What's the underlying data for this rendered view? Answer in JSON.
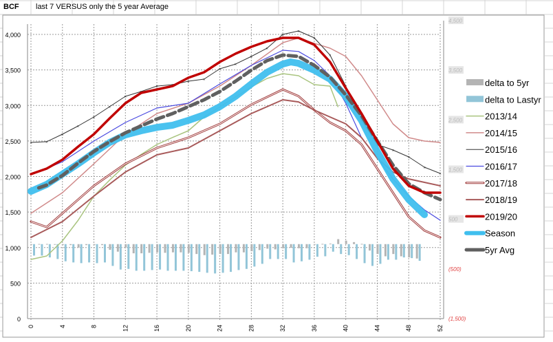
{
  "sheet": {
    "cell_a1": "BCF",
    "cell_b1": "last 7 VERSUS only the 5 year Average"
  },
  "chart_data": {
    "type": "line",
    "title": "",
    "xlabel": "",
    "ylabel": "",
    "xlim": [
      0,
      52
    ],
    "x_ticks": [
      0,
      4,
      8,
      12,
      16,
      20,
      24,
      28,
      32,
      36,
      40,
      44,
      48,
      52
    ],
    "ylim": [
      0,
      4000
    ],
    "y_ticks": [
      0,
      500,
      1000,
      1500,
      2000,
      2500,
      3000,
      3500,
      4000
    ],
    "y_tick_labels": [
      "0",
      "500",
      "1,000",
      "1,500",
      "2,000",
      "2,500",
      "3,000",
      "3,500",
      "4,000"
    ],
    "y2lim": [
      -1500,
      4500
    ],
    "y2_tick_labels": [
      "4,500",
      "3,500",
      "2,500",
      "1,500",
      "500",
      "(500)",
      "(1,500)"
    ],
    "y2_ticks": [
      4500,
      3500,
      2500,
      1500,
      500,
      -500,
      -1500
    ],
    "grid": true,
    "legend_placement": "right",
    "bar_series": [
      {
        "name": "delta to 5yr",
        "color": "#b4b4b4",
        "axis": "secondary",
        "values": [
          -5,
          3,
          3,
          -5,
          -20,
          -20,
          -70,
          -20,
          -20,
          -20,
          -115,
          -152,
          -60,
          -185,
          -185,
          -175,
          -166,
          -175,
          -166,
          -166,
          -175,
          -199,
          -222,
          -212,
          -199,
          -199,
          -166,
          -166,
          -143,
          -120,
          -92,
          -106,
          -83,
          -74,
          -83,
          -83,
          -10,
          5,
          10,
          100,
          70,
          40,
          5,
          -130,
          -199,
          -245,
          -199,
          -245,
          -268,
          -290
        ]
      },
      {
        "name": "delta to Lastyr",
        "color": "#92c5d8",
        "axis": "secondary",
        "values": [
          -231,
          -231,
          -268,
          -300,
          -346,
          -369,
          -383,
          -369,
          -383,
          -369,
          -439,
          -512,
          -499,
          -536,
          -536,
          -522,
          -512,
          -536,
          -536,
          -536,
          -545,
          -559,
          -577,
          -591,
          -577,
          -559,
          -522,
          -499,
          -452,
          -397,
          -300,
          -300,
          -300,
          -369,
          -346,
          -314,
          -254,
          -245,
          -152,
          -199,
          -222,
          -300,
          -383,
          -439,
          -397,
          -314,
          -314,
          -268,
          -282,
          -337
        ]
      }
    ],
    "series": [
      {
        "name": "2013/14",
        "color": "#a9c47f",
        "x": [
          0,
          2,
          4,
          6,
          8,
          10,
          12,
          14,
          16,
          18,
          20,
          22,
          24,
          26,
          28,
          30,
          32,
          34,
          36,
          38,
          39
        ],
        "values": [
          833,
          881,
          1094,
          1385,
          1724,
          1950,
          2160,
          2310,
          2450,
          2550,
          2644,
          2838,
          2980,
          3120,
          3260,
          3380,
          3448,
          3419,
          3293,
          3273,
          2983
        ]
      },
      {
        "name": "2014/15",
        "color": "#d08a8a",
        "x": [
          0,
          4,
          8,
          12,
          16,
          20,
          24,
          28,
          32,
          34,
          36,
          38,
          40,
          42,
          44,
          46,
          48,
          50,
          52
        ],
        "values": [
          1482,
          1772,
          2179,
          2596,
          2886,
          3031,
          3273,
          3564,
          3884,
          3950,
          3874,
          3806,
          3690,
          3419,
          3080,
          2741,
          2547,
          2499,
          2479
        ]
      },
      {
        "name": "2015/16",
        "color": "#333333",
        "x": [
          0,
          2,
          4,
          6,
          8,
          10,
          12,
          14,
          16,
          18,
          20,
          22,
          24,
          26,
          28,
          30,
          32,
          34,
          36,
          38,
          40,
          42,
          44,
          46,
          48,
          50,
          52
        ],
        "values": [
          2479,
          2490,
          2596,
          2712,
          2838,
          2983,
          3128,
          3196,
          3273,
          3293,
          3341,
          3370,
          3516,
          3583,
          3690,
          3806,
          4000,
          4048,
          3952,
          3709,
          3273,
          2789,
          2450,
          2373,
          2276,
          2131,
          2044
        ]
      },
      {
        "name": "2016/17",
        "color": "#4a4ae0",
        "x": [
          1,
          4,
          8,
          12,
          16,
          20,
          24,
          28,
          32,
          34,
          36,
          38,
          40,
          42,
          44,
          46,
          48,
          50,
          52
        ],
        "values": [
          2063,
          2208,
          2499,
          2760,
          2964,
          3031,
          3303,
          3564,
          3777,
          3760,
          3632,
          3419,
          3031,
          2547,
          2257,
          1966,
          1724,
          1530,
          1385
        ]
      },
      {
        "name": "2017/18",
        "color": "#a03a3a",
        "x": [
          0,
          2,
          4,
          8,
          12,
          16,
          20,
          24,
          28,
          32,
          34,
          36,
          38,
          40,
          42,
          44,
          46,
          48,
          50,
          52
        ],
        "values": [
          1366,
          1288,
          1482,
          1869,
          2179,
          2402,
          2547,
          2741,
          3012,
          3225,
          3130,
          2935,
          2760,
          2644,
          2450,
          2111,
          1772,
          1433,
          1240,
          1143
        ]
      },
      {
        "name": "2018/19",
        "color": "#a85a5a",
        "x": [
          0,
          4,
          8,
          12,
          16,
          20,
          24,
          28,
          32,
          34,
          36,
          38,
          40,
          42,
          44,
          46,
          48,
          50,
          52
        ],
        "values": [
          1143,
          1366,
          1724,
          2063,
          2305,
          2402,
          2644,
          2886,
          3080,
          3050,
          2935,
          2838,
          2741,
          2547,
          2257,
          2063,
          1966,
          1918,
          1869
        ]
      },
      {
        "name": "2019/20",
        "color": "#c00000",
        "x": [
          0,
          2,
          4,
          6,
          8,
          10,
          12,
          14,
          16,
          18,
          20,
          22,
          24,
          26,
          28,
          30,
          32,
          34,
          36,
          38,
          40,
          42,
          44,
          46,
          48,
          50,
          52
        ],
        "values": [
          2034,
          2111,
          2237,
          2421,
          2596,
          2818,
          3031,
          3177,
          3225,
          3273,
          3390,
          3467,
          3613,
          3729,
          3826,
          3903,
          3952,
          3952,
          3855,
          3613,
          3245,
          2886,
          2499,
          2111,
          1869,
          1772,
          1772
        ]
      },
      {
        "name": "Season",
        "color": "#40bfee",
        "x": [
          0,
          2,
          4,
          6,
          8,
          10,
          12,
          14,
          16,
          18,
          20,
          22,
          24,
          26,
          28,
          30,
          32,
          33,
          34,
          36,
          38,
          40,
          42,
          44,
          46,
          48,
          50
        ],
        "values": [
          1792,
          1889,
          2034,
          2179,
          2334,
          2479,
          2586,
          2644,
          2692,
          2722,
          2789,
          2867,
          2983,
          3128,
          3303,
          3467,
          3583,
          3613,
          3593,
          3496,
          3370,
          3128,
          2789,
          2353,
          1966,
          1676,
          1462
        ]
      },
      {
        "name": "5yr Avg",
        "color": "#606060",
        "x": [
          1,
          2,
          4,
          6,
          8,
          10,
          12,
          14,
          16,
          18,
          20,
          22,
          24,
          26,
          28,
          30,
          32,
          34,
          36,
          38,
          40,
          42,
          44,
          46,
          48,
          50,
          52
        ],
        "values": [
          1840,
          1880,
          2015,
          2190,
          2353,
          2490,
          2615,
          2712,
          2809,
          2886,
          2983,
          3080,
          3196,
          3341,
          3496,
          3632,
          3709,
          3690,
          3564,
          3400,
          3148,
          2857,
          2499,
          2160,
          1898,
          1772,
          1676
        ]
      }
    ]
  }
}
